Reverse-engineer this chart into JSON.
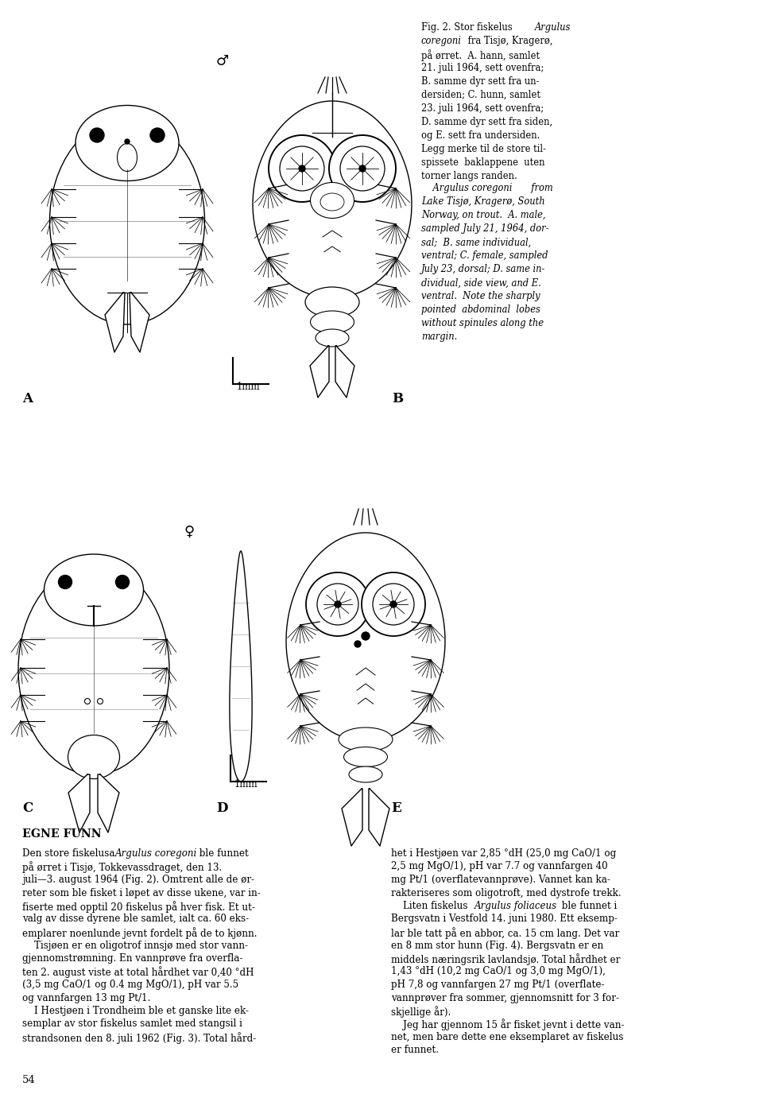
{
  "background_color": "#ffffff",
  "page_width": 9.6,
  "page_height": 13.81,
  "caption_nor_line1": "Fig. 2. Stor fiskelus ",
  "caption_nor_italic1": "Argulus",
  "caption_nor_line1b": "",
  "caption_nor_italic2": "coregoni",
  "caption_nor_line2b": " fra Tisjø, Kragerø,",
  "caption_nor_rest": "på ørret.  A. hann, samlet\n21. juli 1964, sett ovenfra;\nB. samme dyr sett fra un-\ndersiden; C. hunn, samlet\n23. juli 1964, sett ovenfra;\nD. samme dyr sett fra siden,\nog E. sett fra undersiden.\nLegg merke til de store til-\nspissete  baklappene  uten\ntorner langs randen.",
  "caption_eng_intro": "    Argulus coregoni",
  "caption_eng_rest": "  from\nLake Tisjø, Kragerø, South\nNorway, on trout.  A. male,\nsampled July 21, 1964, dor-\nsal;  B. same individual,\nventral; C. female, sampled\nJuly 23, dorsal; D. same in-\ndividual, side view, and E.\nventral.  Note the sharply\npointed  abdominal  lobes\nwithout spinules along the\nmargin.",
  "section_header": "EGNE FUNN",
  "col1_line0": "Den store fiskelusa ",
  "col1_line0_italic": "Argulus coregoni",
  "col1_line0_rest": " ble funnet",
  "col1_rest": "på ørret i Tisjø, Tokkevassdraget, den 13.\njuli—3. august 1964 (Fig. 2). Omtrent alle de ør-\nreter som ble fisket i løpet av disse ukene, var in-\nfiserte med opptil 20 fiskelus på hver fisk. Et ut-\nvalg av disse dyrene ble samlet, ialt ca. 60 eks-\nemplarer noenlunde jevnt fordelt på de to kjønn.\n    Tisjøen er en oligotrof innsjø med stor vann-\ngjennomstrømning. En vannprøve fra overfla-\nten 2. august viste at total hårdhet var 0,40 °dH\n(3,5 mg CaO/1 og 0.4 mg MgO/1), pH var 5.5\nog vannfargen 13 mg Pt/1.\n    I Hestjøen i Trondheim ble et ganske lite ek-\nsemplar av stor fiskelus samlet med stangsil i\nstrandsonen den 8. juli 1962 (Fig. 3). Total hård-",
  "col2_line0": "het i Hestjøen var 2,85 °dH (25,0 mg CaO/1 og",
  "col2_rest": "2,5 mg MgO/1), pH var 7.7 og vannfargen 40\nmg Pt/1 (overflatevannprøve). Vannet kan ka-\nrakteriseres som oligotroft, med dystrofe trekk.\n    Liten fiskelus ",
  "col2_italic": "Argulus foliaceus",
  "col2_after_italic": " ble funnet i\nBergsvatn i Vestfold 14. juni 1980. Ett eksemp-\nlar ble tatt på en abbor, ca. 15 cm lang. Det var\nen 8 mm stor hunn (Fig. 4). Bergsvatn er en\nmiddels næringsrik lavlandsjø. Total hårdhet er\n1,43 °dH (10,2 mg CaO/1 og 3,0 mg MgO/1),\npH 7,8 og vannfargen 27 mg Pt/1 (overflate-\nvannprøver fra sommer, gjennomsnitt for 3 for-\nskjellige år).\n    Jeg har gjennom 15 år fisket jevnt i dette van-\nnet, men bare dette ene eksemplaret av fiskelus\ner funnet.",
  "page_number": "54",
  "male_symbol": "♂",
  "female_symbol": "♀",
  "scale_bar_label": "1mm"
}
